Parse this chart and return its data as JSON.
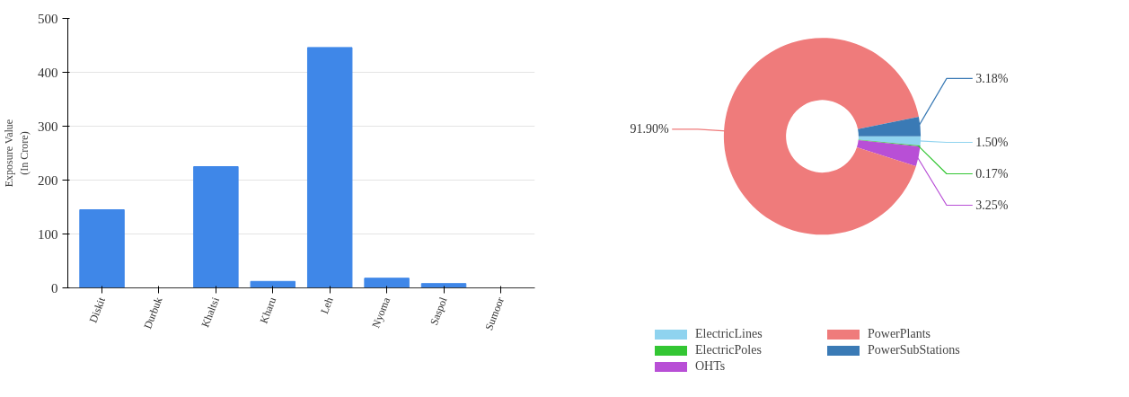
{
  "chart_data": [
    {
      "type": "bar",
      "ylabel": "Exposure Value\n(In Crore)",
      "categories": [
        "Diskit",
        "Durbuk",
        "Khaltsi",
        "Kharu",
        "Leh",
        "Nyoma",
        "Saspol",
        "Sumoor"
      ],
      "values": [
        145,
        0,
        225,
        12,
        446,
        18,
        8,
        0
      ],
      "color": "#3f87e8",
      "ylim": [
        0,
        500
      ],
      "yticks": [
        0,
        100,
        200,
        300,
        400,
        500
      ],
      "grid": "y"
    },
    {
      "type": "donut",
      "categories": [
        "ElectricLines",
        "ElectricPoles",
        "OHTs",
        "PowerPlants",
        "PowerSubStations"
      ],
      "values": [
        1.5,
        0.17,
        3.25,
        91.9,
        3.18
      ],
      "colors": [
        "#8fd3ef",
        "#33c633",
        "#b84fd6",
        "#ef7b7b",
        "#3a7ab5"
      ],
      "value_labels": [
        "1.50%",
        "0.17%",
        "3.25%",
        "91.90%",
        "3.18%"
      ],
      "legend": "bottom"
    }
  ]
}
